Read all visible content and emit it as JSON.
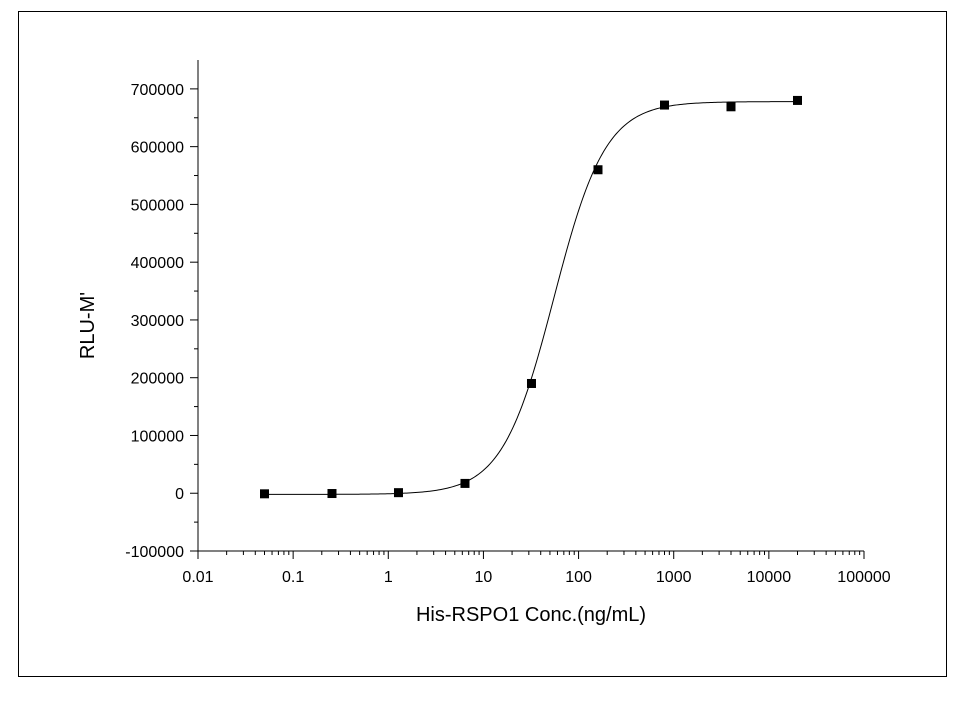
{
  "chart_data": {
    "type": "scatter",
    "title": "",
    "xlabel": "His-RSPO1 Conc.(ng/mL)",
    "ylabel": "RLU-M'",
    "x_scale": "log",
    "xlim": [
      0.01,
      100000
    ],
    "ylim": [
      -100000,
      750000
    ],
    "x_ticks": [
      0.01,
      0.1,
      1,
      10,
      100,
      1000,
      10000,
      100000
    ],
    "x_tick_labels": [
      "0.01",
      "0.1",
      "1",
      "10",
      "100",
      "1000",
      "10000",
      "100000"
    ],
    "y_ticks": [
      -100000,
      0,
      100000,
      200000,
      300000,
      400000,
      500000,
      600000,
      700000
    ],
    "y_tick_labels": [
      "-100000",
      "0",
      "100000",
      "200000",
      "300000",
      "400000",
      "500000",
      "600000",
      "700000"
    ],
    "grid": false,
    "legend": "none",
    "series": [
      {
        "marker": "square",
        "color": "#000000",
        "x": [
          0.05,
          0.256,
          1.28,
          6.4,
          32,
          160,
          800,
          4000,
          20000
        ],
        "y": [
          -1000,
          -500,
          1000,
          17000,
          190000,
          560000,
          672000,
          669000,
          680000
        ]
      }
    ],
    "fit_curve": {
      "model": "4PL",
      "bottom": -2000,
      "top": 678000,
      "ec50": 55,
      "hill": 1.6,
      "x_range": [
        0.05,
        20000
      ],
      "color": "#000000"
    }
  }
}
